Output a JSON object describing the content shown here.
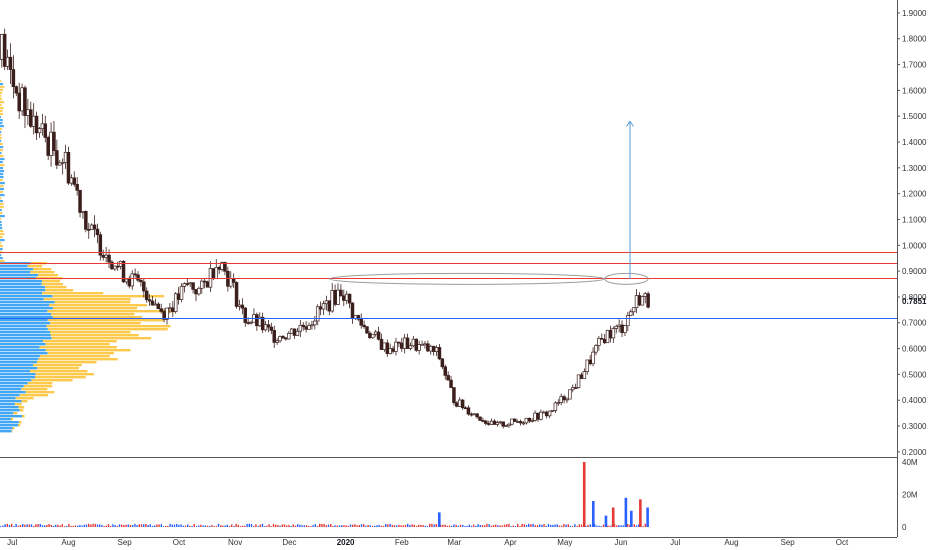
{
  "chart_data": [
    {
      "type": "candlestick",
      "title": "",
      "x_axis": {
        "tick_labels": [
          "Jul",
          "Aug",
          "Sep",
          "Oct",
          "Nov",
          "Dec",
          "2020",
          "Feb",
          "Mar",
          "Apr",
          "May",
          "Jun",
          "Jul",
          "Aug",
          "Sep",
          "Oct"
        ],
        "start": "2019-07-01",
        "end": "2020-10-31"
      },
      "y_axis": {
        "tick_labels": [
          "1.9000",
          "1.8000",
          "1.7000",
          "1.6000",
          "1.5000",
          "1.4000",
          "1.3000",
          "1.2000",
          "1.1000",
          "1.0000",
          "0.9000",
          "0.8000",
          "0.7000",
          "0.6000",
          "0.5000",
          "0.4000",
          "0.3000",
          "0.2000"
        ],
        "ylim": [
          0.18,
          1.95
        ],
        "current_price_label": "0.7851"
      },
      "price_path_close": [
        [
          "2019-07-01",
          1.83
        ],
        [
          "2019-07-08",
          1.68
        ],
        [
          "2019-07-15",
          1.55
        ],
        [
          "2019-07-22",
          1.47
        ],
        [
          "2019-08-01",
          1.38
        ],
        [
          "2019-08-08",
          1.33
        ],
        [
          "2019-08-15",
          1.2
        ],
        [
          "2019-08-22",
          1.05
        ],
        [
          "2019-09-01",
          0.97
        ],
        [
          "2019-09-08",
          0.9
        ],
        [
          "2019-09-15",
          0.86
        ],
        [
          "2019-09-22",
          0.82
        ],
        [
          "2019-10-01",
          0.74
        ],
        [
          "2019-10-08",
          0.78
        ],
        [
          "2019-10-15",
          0.85
        ],
        [
          "2019-10-22",
          0.82
        ],
        [
          "2019-11-01",
          0.95
        ],
        [
          "2019-11-08",
          0.85
        ],
        [
          "2019-11-15",
          0.72
        ],
        [
          "2019-11-22",
          0.7
        ],
        [
          "2019-12-01",
          0.65
        ],
        [
          "2019-12-10",
          0.66
        ],
        [
          "2019-12-20",
          0.7
        ],
        [
          "2020-01-01",
          0.78
        ],
        [
          "2020-01-08",
          0.83
        ],
        [
          "2020-01-15",
          0.72
        ],
        [
          "2020-01-25",
          0.65
        ],
        [
          "2020-02-01",
          0.6
        ],
        [
          "2020-02-15",
          0.62
        ],
        [
          "2020-03-01",
          0.58
        ],
        [
          "2020-03-10",
          0.4
        ],
        [
          "2020-03-20",
          0.35
        ],
        [
          "2020-04-01",
          0.3
        ],
        [
          "2020-04-15",
          0.32
        ],
        [
          "2020-05-01",
          0.35
        ],
        [
          "2020-05-15",
          0.45
        ],
        [
          "2020-06-01",
          0.65
        ],
        [
          "2020-06-10",
          0.68
        ],
        [
          "2020-06-20",
          0.8
        ],
        [
          "2020-06-25",
          0.785
        ]
      ],
      "horizontal_lines": [
        {
          "price": 0.975,
          "color": "#e53935"
        },
        {
          "price": 0.93,
          "color": "#e53935"
        },
        {
          "price": 0.873,
          "color": "#e53935"
        },
        {
          "price": 0.717,
          "color": "#2962ff"
        }
      ],
      "annotations": [
        {
          "type": "ellipse",
          "from": "2020-01-01",
          "to": "2020-06-01",
          "price": 0.87,
          "color": "#9e9e9e"
        },
        {
          "type": "ellipse",
          "from": "2020-06-01",
          "to": "2020-06-25",
          "price": 0.87,
          "color": "#9e9e9e"
        },
        {
          "type": "arrow",
          "date": "2020-06-15",
          "from": 0.87,
          "to": 1.48,
          "color": "#5b9bd5"
        }
      ],
      "volume_profile": {
        "up_color": "#2196f3",
        "down_color": "#fbc02d"
      }
    },
    {
      "type": "bar",
      "series_label": "volume",
      "tick_labels": [
        "40M",
        "20M",
        "0"
      ],
      "ylim": [
        0,
        40000000
      ],
      "colors": {
        "up": "#2962ff",
        "down": "#e53935"
      },
      "values_millions": [
        [
          "2020-03-01",
          9
        ],
        [
          "2020-05-20",
          40
        ],
        [
          "2020-05-25",
          16
        ],
        [
          "2020-06-01",
          7
        ],
        [
          "2020-06-05",
          12
        ],
        [
          "2020-06-12",
          18
        ],
        [
          "2020-06-15",
          10
        ],
        [
          "2020-06-20",
          17
        ],
        [
          "2020-06-24",
          12
        ]
      ]
    }
  ]
}
